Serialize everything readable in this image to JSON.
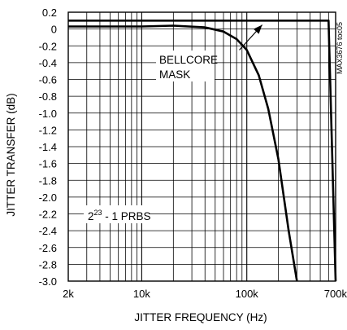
{
  "chart_data": {
    "type": "line",
    "xlabel": "JITTER FREQUENCY (Hz)",
    "ylabel": "JITTER TRANSFER (dB)",
    "x_scale": "log",
    "xlim": [
      2000,
      700000
    ],
    "ylim": [
      -3.0,
      0.2
    ],
    "x_ticks": [
      {
        "value": 2000,
        "label": "2k"
      },
      {
        "value": 10000,
        "label": "10k"
      },
      {
        "value": 100000,
        "label": "100k"
      },
      {
        "value": 700000,
        "label": "700k"
      }
    ],
    "y_ticks": [
      {
        "value": 0.2,
        "label": "0.2"
      },
      {
        "value": 0,
        "label": "0"
      },
      {
        "value": -0.2,
        "label": "-0.2"
      },
      {
        "value": -0.4,
        "label": "-0.4"
      },
      {
        "value": -0.6,
        "label": "-0.6"
      },
      {
        "value": -0.8,
        "label": "-0.8"
      },
      {
        "value": -1.0,
        "label": "-1.0"
      },
      {
        "value": -1.2,
        "label": "-1.2"
      },
      {
        "value": -1.4,
        "label": "-1.4"
      },
      {
        "value": -1.6,
        "label": "-1.6"
      },
      {
        "value": -1.8,
        "label": "-1.8"
      },
      {
        "value": -2.0,
        "label": "-2.0"
      },
      {
        "value": -2.2,
        "label": "-2.2"
      },
      {
        "value": -2.4,
        "label": "-2.4"
      },
      {
        "value": -2.6,
        "label": "-2.6"
      },
      {
        "value": -2.8,
        "label": "-2.8"
      },
      {
        "value": -3.0,
        "label": "-3.0"
      }
    ],
    "grid": true,
    "series": [
      {
        "x": [
          2000,
          4000,
          10000,
          20000,
          40000,
          60000,
          80000,
          100000,
          130000,
          160000,
          200000,
          250000,
          300000
        ],
        "y": [
          0.03,
          0.03,
          0.03,
          0.04,
          0.02,
          -0.03,
          -0.12,
          -0.25,
          -0.55,
          -0.95,
          -1.55,
          -2.4,
          -3.0
        ]
      },
      {
        "x": [
          2000,
          600000,
          700000
        ],
        "y": [
          0.1,
          0.1,
          -3.0
        ]
      }
    ],
    "annotations": [
      {
        "text": "BELLCORE MASK",
        "lines": [
          "BELLCORE",
          "MASK"
        ],
        "arrow_from": [
          85000,
          -0.25
        ],
        "arrow_to": [
          140000,
          0.05
        ]
      },
      {
        "text": "223 - 1 PRBS",
        "base": "2",
        "superscript": "23",
        "suffix": " - 1 PRBS"
      }
    ],
    "side_label": "MAX3676 toc05"
  }
}
